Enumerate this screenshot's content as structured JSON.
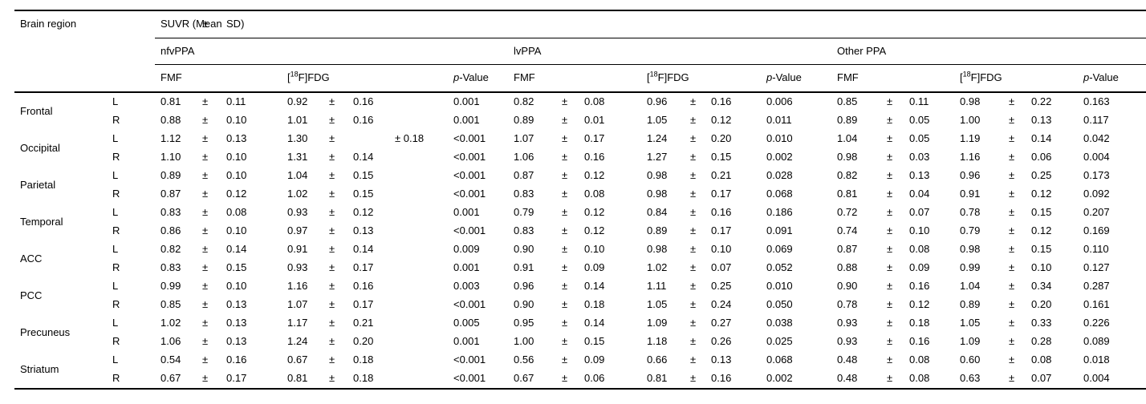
{
  "colors": {
    "background": "#ffffff",
    "text": "#000000",
    "rule": "#000000"
  },
  "pm_sign": "±",
  "header": {
    "brain_region": "Brain region",
    "suvr_open": "SUVR (Mean",
    "suvr_close": "SD)",
    "groups": [
      "nfvPPA",
      "lvPPA",
      "Other PPA"
    ],
    "tracer_fmf": "FMF",
    "tracer_fdg": {
      "open": "[",
      "sup": "18",
      "rest": "F]FDG"
    },
    "p_value": {
      "italic": "p",
      "rest": "-Value"
    }
  },
  "regions": [
    {
      "name": "Frontal",
      "sides": [
        {
          "side": "L",
          "groups": [
            {
              "fmf": [
                "0.81",
                "0.11"
              ],
              "fdg": [
                "0.92",
                "0.16"
              ],
              "p": "0.001"
            },
            {
              "fmf": [
                "0.82",
                "0.08"
              ],
              "fdg": [
                "0.96",
                "0.16"
              ],
              "p": "0.006"
            },
            {
              "fmf": [
                "0.85",
                "0.11"
              ],
              "fdg": [
                "0.98",
                "0.22"
              ],
              "p": "0.163"
            }
          ]
        },
        {
          "side": "R",
          "groups": [
            {
              "fmf": [
                "0.88",
                "0.10"
              ],
              "fdg": [
                "1.01",
                "0.16"
              ],
              "p": "0.001"
            },
            {
              "fmf": [
                "0.89",
                "0.01"
              ],
              "fdg": [
                "1.05",
                "0.12"
              ],
              "p": "0.011"
            },
            {
              "fmf": [
                "0.89",
                "0.05"
              ],
              "fdg": [
                "1.00",
                "0.13"
              ],
              "p": "0.117"
            }
          ]
        }
      ]
    },
    {
      "name": "Occipital",
      "sides": [
        {
          "side": "L",
          "groups": [
            {
              "fmf": [
                "1.12",
                "0.13"
              ],
              "fdg": [
                "1.30",
                "",
                "± 0.18"
              ],
              "p": "<0.001"
            },
            {
              "fmf": [
                "1.07",
                "0.17"
              ],
              "fdg": [
                "1.24",
                "0.20"
              ],
              "p": "0.010"
            },
            {
              "fmf": [
                "1.04",
                "0.05"
              ],
              "fdg": [
                "1.19",
                "0.14"
              ],
              "p": "0.042"
            }
          ]
        },
        {
          "side": "R",
          "groups": [
            {
              "fmf": [
                "1.10",
                "0.10"
              ],
              "fdg": [
                "1.31",
                "0.14"
              ],
              "p": "<0.001"
            },
            {
              "fmf": [
                "1.06",
                "0.16"
              ],
              "fdg": [
                "1.27",
                "0.15"
              ],
              "p": "0.002"
            },
            {
              "fmf": [
                "0.98",
                "0.03"
              ],
              "fdg": [
                "1.16",
                "0.06"
              ],
              "p": "0.004"
            }
          ]
        }
      ]
    },
    {
      "name": "Parietal",
      "sides": [
        {
          "side": "L",
          "groups": [
            {
              "fmf": [
                "0.89",
                "0.10"
              ],
              "fdg": [
                "1.04",
                "0.15"
              ],
              "p": "<0.001"
            },
            {
              "fmf": [
                "0.87",
                "0.12"
              ],
              "fdg": [
                "0.98",
                "0.21"
              ],
              "p": "0.028"
            },
            {
              "fmf": [
                "0.82",
                "0.13"
              ],
              "fdg": [
                "0.96",
                "0.25"
              ],
              "p": "0.173"
            }
          ]
        },
        {
          "side": "R",
          "groups": [
            {
              "fmf": [
                "0.87",
                "0.12"
              ],
              "fdg": [
                "1.02",
                "0.15"
              ],
              "p": "<0.001"
            },
            {
              "fmf": [
                "0.83",
                "0.08"
              ],
              "fdg": [
                "0.98",
                "0.17"
              ],
              "p": "0.068"
            },
            {
              "fmf": [
                "0.81",
                "0.04"
              ],
              "fdg": [
                "0.91",
                "0.12"
              ],
              "p": "0.092"
            }
          ]
        }
      ]
    },
    {
      "name": "Temporal",
      "sides": [
        {
          "side": "L",
          "groups": [
            {
              "fmf": [
                "0.83",
                "0.08"
              ],
              "fdg": [
                "0.93",
                "0.12"
              ],
              "p": "0.001"
            },
            {
              "fmf": [
                "0.79",
                "0.12"
              ],
              "fdg": [
                "0.84",
                "0.16"
              ],
              "p": "0.186"
            },
            {
              "fmf": [
                "0.72",
                "0.07"
              ],
              "fdg": [
                "0.78",
                "0.15"
              ],
              "p": "0.207"
            }
          ]
        },
        {
          "side": "R",
          "groups": [
            {
              "fmf": [
                "0.86",
                "0.10"
              ],
              "fdg": [
                "0.97",
                "0.13"
              ],
              "p": "<0.001"
            },
            {
              "fmf": [
                "0.83",
                "0.12"
              ],
              "fdg": [
                "0.89",
                "0.17"
              ],
              "p": "0.091"
            },
            {
              "fmf": [
                "0.74",
                "0.10"
              ],
              "fdg": [
                "0.79",
                "0.12"
              ],
              "p": "0.169"
            }
          ]
        }
      ]
    },
    {
      "name": "ACC",
      "sides": [
        {
          "side": "L",
          "groups": [
            {
              "fmf": [
                "0.82",
                "0.14"
              ],
              "fdg": [
                "0.91",
                "0.14"
              ],
              "p": "0.009"
            },
            {
              "fmf": [
                "0.90",
                "0.10"
              ],
              "fdg": [
                "0.98",
                "0.10"
              ],
              "p": "0.069"
            },
            {
              "fmf": [
                "0.87",
                "0.08"
              ],
              "fdg": [
                "0.98",
                "0.15"
              ],
              "p": "0.110"
            }
          ]
        },
        {
          "side": "R",
          "groups": [
            {
              "fmf": [
                "0.83",
                "0.15"
              ],
              "fdg": [
                "0.93",
                "0.17"
              ],
              "p": "0.001"
            },
            {
              "fmf": [
                "0.91",
                "0.09"
              ],
              "fdg": [
                "1.02",
                "0.07"
              ],
              "p": "0.052"
            },
            {
              "fmf": [
                "0.88",
                "0.09"
              ],
              "fdg": [
                "0.99",
                "0.10"
              ],
              "p": "0.127"
            }
          ]
        }
      ]
    },
    {
      "name": "PCC",
      "sides": [
        {
          "side": "L",
          "groups": [
            {
              "fmf": [
                "0.99",
                "0.10"
              ],
              "fdg": [
                "1.16",
                "0.16"
              ],
              "p": "0.003"
            },
            {
              "fmf": [
                "0.96",
                "0.14"
              ],
              "fdg": [
                "1.11",
                "0.25"
              ],
              "p": "0.010"
            },
            {
              "fmf": [
                "0.90",
                "0.16"
              ],
              "fdg": [
                "1.04",
                "0.34"
              ],
              "p": "0.287"
            }
          ]
        },
        {
          "side": "R",
          "groups": [
            {
              "fmf": [
                "0.85",
                "0.13"
              ],
              "fdg": [
                "1.07",
                "0.17"
              ],
              "p": "<0.001"
            },
            {
              "fmf": [
                "0.90",
                "0.18"
              ],
              "fdg": [
                "1.05",
                "0.24"
              ],
              "p": "0.050"
            },
            {
              "fmf": [
                "0.78",
                "0.12"
              ],
              "fdg": [
                "0.89",
                "0.20"
              ],
              "p": "0.161"
            }
          ]
        }
      ]
    },
    {
      "name": "Precuneus",
      "sides": [
        {
          "side": "L",
          "groups": [
            {
              "fmf": [
                "1.02",
                "0.13"
              ],
              "fdg": [
                "1.17",
                "0.21"
              ],
              "p": "0.005"
            },
            {
              "fmf": [
                "0.95",
                "0.14"
              ],
              "fdg": [
                "1.09",
                "0.27"
              ],
              "p": "0.038"
            },
            {
              "fmf": [
                "0.93",
                "0.18"
              ],
              "fdg": [
                "1.05",
                "0.33"
              ],
              "p": "0.226"
            }
          ]
        },
        {
          "side": "R",
          "groups": [
            {
              "fmf": [
                "1.06",
                "0.13"
              ],
              "fdg": [
                "1.24",
                "0.20"
              ],
              "p": "0.001"
            },
            {
              "fmf": [
                "1.00",
                "0.15"
              ],
              "fdg": [
                "1.18",
                "0.26"
              ],
              "p": "0.025"
            },
            {
              "fmf": [
                "0.93",
                "0.16"
              ],
              "fdg": [
                "1.09",
                "0.28"
              ],
              "p": "0.089"
            }
          ]
        }
      ]
    },
    {
      "name": "Striatum",
      "sides": [
        {
          "side": "L",
          "groups": [
            {
              "fmf": [
                "0.54",
                "0.16"
              ],
              "fdg": [
                "0.67",
                "0.18"
              ],
              "p": "<0.001"
            },
            {
              "fmf": [
                "0.56",
                "0.09"
              ],
              "fdg": [
                "0.66",
                "0.13"
              ],
              "p": "0.068"
            },
            {
              "fmf": [
                "0.48",
                "0.08"
              ],
              "fdg": [
                "0.60",
                "0.08"
              ],
              "p": "0.018"
            }
          ]
        },
        {
          "side": "R",
          "groups": [
            {
              "fmf": [
                "0.67",
                "0.17"
              ],
              "fdg": [
                "0.81",
                "0.18"
              ],
              "p": "<0.001"
            },
            {
              "fmf": [
                "0.67",
                "0.06"
              ],
              "fdg": [
                "0.81",
                "0.16"
              ],
              "p": "0.002"
            },
            {
              "fmf": [
                "0.48",
                "0.08"
              ],
              "fdg": [
                "0.63",
                "0.07"
              ],
              "p": "0.004"
            }
          ]
        }
      ]
    }
  ]
}
